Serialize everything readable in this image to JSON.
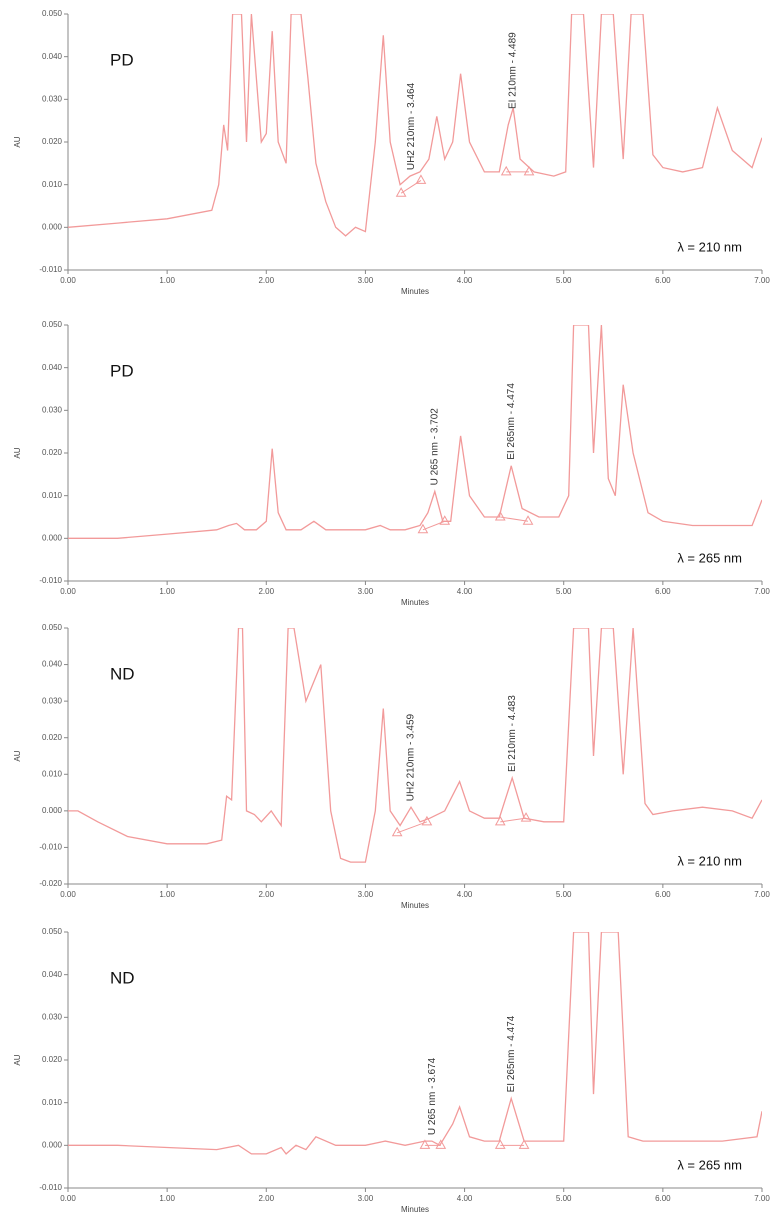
{
  "chart_data": [
    {
      "type": "line",
      "sample_label": "PD",
      "wavelength_label": "λ = 210 nm",
      "ylabel": "AU",
      "xlabel": "Minutes",
      "color": "#f29a9a",
      "x": [
        0,
        0.5,
        1.0,
        1.45,
        1.52,
        1.57,
        1.61,
        1.66,
        1.75,
        1.8,
        1.85,
        1.95,
        2.0,
        2.06,
        2.12,
        2.2,
        2.25,
        2.35,
        2.42,
        2.5,
        2.6,
        2.7,
        2.8,
        2.9,
        3.0,
        3.1,
        3.18,
        3.25,
        3.35,
        3.45,
        3.55,
        3.64,
        3.72,
        3.8,
        3.88,
        3.96,
        4.05,
        4.2,
        4.35,
        4.44,
        4.49,
        4.56,
        4.7,
        4.9,
        5.02,
        5.08,
        5.2,
        5.3,
        5.38,
        5.5,
        5.6,
        5.68,
        5.8,
        5.9,
        6.0,
        6.2,
        6.4,
        6.55,
        6.7,
        6.9,
        7.0
      ],
      "values": [
        0,
        0.001,
        0.002,
        0.004,
        0.01,
        0.024,
        0.018,
        0.05,
        0.05,
        0.02,
        0.05,
        0.02,
        0.022,
        0.046,
        0.02,
        0.015,
        0.05,
        0.05,
        0.035,
        0.015,
        0.006,
        0.0,
        -0.002,
        0.0,
        -0.001,
        0.02,
        0.045,
        0.02,
        0.01,
        0.012,
        0.013,
        0.016,
        0.026,
        0.016,
        0.02,
        0.036,
        0.02,
        0.013,
        0.013,
        0.024,
        0.028,
        0.016,
        0.013,
        0.012,
        0.013,
        0.05,
        0.05,
        0.014,
        0.05,
        0.05,
        0.016,
        0.05,
        0.05,
        0.017,
        0.014,
        0.013,
        0.014,
        0.028,
        0.018,
        0.014,
        0.021
      ],
      "markers": {
        "x": [
          3.36,
          3.56,
          4.42,
          4.65
        ],
        "y": [
          0.008,
          0.011,
          0.013,
          0.013
        ]
      },
      "peak_labels": [
        {
          "text": "UH2 210nm - 3.464",
          "x": 3.464
        },
        {
          "text": "EI 210nm - 4.489",
          "x": 4.489
        }
      ],
      "xlim": [
        0,
        7
      ],
      "ylim": [
        -0.01,
        0.05
      ],
      "xticks": [
        {
          "value": 0,
          "label": "0.00"
        },
        {
          "value": 1,
          "label": "1.00"
        },
        {
          "value": 2,
          "label": "2.00"
        },
        {
          "value": 3,
          "label": "3.00"
        },
        {
          "value": 4,
          "label": "4.00"
        },
        {
          "value": 5,
          "label": "5.00"
        },
        {
          "value": 6,
          "label": "6.00"
        },
        {
          "value": 7,
          "label": "7.00"
        }
      ],
      "yticks": [
        {
          "value": -0.01,
          "label": "-0.010"
        },
        {
          "value": 0,
          "label": "0.000"
        },
        {
          "value": 0.01,
          "label": "0.010"
        },
        {
          "value": 0.02,
          "label": "0.020"
        },
        {
          "value": 0.03,
          "label": "0.030"
        },
        {
          "value": 0.04,
          "label": "0.040"
        },
        {
          "value": 0.05,
          "label": "0.050"
        }
      ]
    },
    {
      "type": "line",
      "sample_label": "PD",
      "wavelength_label": "λ = 265 nm",
      "ylabel": "AU",
      "xlabel": "Minutes",
      "color": "#f29a9a",
      "x": [
        0,
        0.5,
        1.0,
        1.5,
        1.62,
        1.7,
        1.78,
        1.9,
        2.0,
        2.06,
        2.12,
        2.2,
        2.35,
        2.48,
        2.6,
        2.8,
        3.0,
        3.15,
        3.25,
        3.4,
        3.55,
        3.63,
        3.7,
        3.78,
        3.86,
        3.96,
        4.05,
        4.2,
        4.35,
        4.47,
        4.58,
        4.75,
        4.95,
        5.05,
        5.1,
        5.25,
        5.3,
        5.38,
        5.45,
        5.52,
        5.6,
        5.7,
        5.85,
        6.0,
        6.3,
        6.6,
        6.9,
        7.0
      ],
      "values": [
        0,
        0,
        0.001,
        0.002,
        0.003,
        0.0035,
        0.002,
        0.002,
        0.004,
        0.021,
        0.006,
        0.002,
        0.002,
        0.004,
        0.002,
        0.002,
        0.002,
        0.003,
        0.002,
        0.002,
        0.003,
        0.006,
        0.011,
        0.004,
        0.004,
        0.024,
        0.01,
        0.005,
        0.005,
        0.017,
        0.007,
        0.005,
        0.005,
        0.01,
        0.05,
        0.05,
        0.02,
        0.05,
        0.014,
        0.01,
        0.036,
        0.02,
        0.006,
        0.004,
        0.003,
        0.003,
        0.003,
        0.009
      ],
      "markers": {
        "x": [
          3.58,
          3.8,
          4.36,
          4.64
        ],
        "y": [
          0.002,
          0.004,
          0.005,
          0.004
        ]
      },
      "peak_labels": [
        {
          "text": "U 265 nm - 3.702",
          "x": 3.702
        },
        {
          "text": "EI 265nm - 4.474",
          "x": 4.474
        }
      ],
      "xlim": [
        0,
        7
      ],
      "ylim": [
        -0.01,
        0.05
      ],
      "xticks": [
        {
          "value": 0,
          "label": "0.00"
        },
        {
          "value": 1,
          "label": "1.00"
        },
        {
          "value": 2,
          "label": "2.00"
        },
        {
          "value": 3,
          "label": "3.00"
        },
        {
          "value": 4,
          "label": "4.00"
        },
        {
          "value": 5,
          "label": "5.00"
        },
        {
          "value": 6,
          "label": "6.00"
        },
        {
          "value": 7,
          "label": "7.00"
        }
      ],
      "yticks": [
        {
          "value": -0.01,
          "label": "-0.010"
        },
        {
          "value": 0,
          "label": "0.000"
        },
        {
          "value": 0.01,
          "label": "0.010"
        },
        {
          "value": 0.02,
          "label": "0.020"
        },
        {
          "value": 0.03,
          "label": "0.030"
        },
        {
          "value": 0.04,
          "label": "0.040"
        },
        {
          "value": 0.05,
          "label": "0.050"
        }
      ]
    },
    {
      "type": "line",
      "sample_label": "ND",
      "wavelength_label": "λ = 210 nm",
      "ylabel": "AU",
      "xlabel": "Minutes",
      "color": "#f29a9a",
      "x": [
        0,
        0.1,
        0.3,
        0.6,
        1.0,
        1.4,
        1.55,
        1.6,
        1.65,
        1.72,
        1.76,
        1.8,
        1.88,
        1.95,
        2.05,
        2.15,
        2.22,
        2.28,
        2.4,
        2.55,
        2.65,
        2.75,
        2.85,
        3.0,
        3.1,
        3.18,
        3.25,
        3.35,
        3.46,
        3.55,
        3.65,
        3.8,
        3.95,
        4.05,
        4.2,
        4.35,
        4.48,
        4.6,
        4.8,
        5.0,
        5.1,
        5.25,
        5.3,
        5.38,
        5.5,
        5.6,
        5.7,
        5.82,
        5.9,
        6.1,
        6.4,
        6.7,
        6.9,
        7.0
      ],
      "values": [
        0,
        0,
        -0.003,
        -0.007,
        -0.009,
        -0.009,
        -0.008,
        0.004,
        0.003,
        0.05,
        0.05,
        0.0,
        -0.001,
        -0.003,
        0.0,
        -0.004,
        0.05,
        0.05,
        0.03,
        0.04,
        0.0,
        -0.013,
        -0.014,
        -0.014,
        0.0,
        0.028,
        0.0,
        -0.004,
        0.001,
        -0.003,
        -0.002,
        0.0,
        0.008,
        0.0,
        -0.002,
        -0.002,
        0.009,
        -0.002,
        -0.003,
        -0.003,
        0.05,
        0.05,
        0.015,
        0.05,
        0.05,
        0.01,
        0.05,
        0.002,
        -0.001,
        0.0,
        0.001,
        0.0,
        -0.002,
        0.003
      ],
      "markers": {
        "x": [
          3.32,
          3.62,
          4.36,
          4.62
        ],
        "y": [
          -0.006,
          -0.003,
          -0.003,
          -0.002
        ]
      },
      "peak_labels": [
        {
          "text": "UH2 210nm - 3.459",
          "x": 3.459
        },
        {
          "text": "EI 210nm - 4.483",
          "x": 4.483
        }
      ],
      "xlim": [
        0,
        7
      ],
      "ylim": [
        -0.02,
        0.05
      ],
      "xticks": [
        {
          "value": 0,
          "label": "0.00"
        },
        {
          "value": 1,
          "label": "1.00"
        },
        {
          "value": 2,
          "label": "2.00"
        },
        {
          "value": 3,
          "label": "3.00"
        },
        {
          "value": 4,
          "label": "4.00"
        },
        {
          "value": 5,
          "label": "5.00"
        },
        {
          "value": 6,
          "label": "6.00"
        },
        {
          "value": 7,
          "label": "7.00"
        }
      ],
      "yticks": [
        {
          "value": -0.02,
          "label": "-0.020"
        },
        {
          "value": -0.01,
          "label": "-0.010"
        },
        {
          "value": 0,
          "label": "0.000"
        },
        {
          "value": 0.01,
          "label": "0.010"
        },
        {
          "value": 0.02,
          "label": "0.020"
        },
        {
          "value": 0.03,
          "label": "0.030"
        },
        {
          "value": 0.04,
          "label": "0.040"
        },
        {
          "value": 0.05,
          "label": "0.050"
        }
      ]
    },
    {
      "type": "line",
      "sample_label": "ND",
      "wavelength_label": "λ = 265 nm",
      "ylabel": "AU",
      "xlabel": "Minutes",
      "color": "#f29a9a",
      "x": [
        0,
        0.5,
        1.0,
        1.5,
        1.72,
        1.85,
        2.0,
        2.15,
        2.2,
        2.3,
        2.4,
        2.5,
        2.7,
        3.0,
        3.2,
        3.4,
        3.6,
        3.67,
        3.75,
        3.88,
        3.95,
        4.05,
        4.2,
        4.35,
        4.47,
        4.6,
        4.8,
        5.0,
        5.1,
        5.25,
        5.3,
        5.38,
        5.45,
        5.55,
        5.65,
        5.8,
        6.2,
        6.6,
        6.95,
        7.0
      ],
      "values": [
        0,
        0,
        -0.0005,
        -0.001,
        0,
        -0.002,
        -0.002,
        -0.0005,
        -0.002,
        0.0,
        -0.001,
        0.002,
        0.0,
        0.0,
        0.001,
        0.0,
        0.001,
        0.001,
        0.0,
        0.005,
        0.009,
        0.002,
        0.001,
        0.001,
        0.011,
        0.001,
        0.001,
        0.001,
        0.05,
        0.05,
        0.012,
        0.05,
        0.05,
        0.05,
        0.002,
        0.001,
        0.001,
        0.001,
        0.002,
        0.008
      ],
      "markers": {
        "x": [
          3.6,
          3.76,
          4.36,
          4.6
        ],
        "y": [
          0.0,
          0.0,
          0.0,
          0.0
        ]
      },
      "peak_labels": [
        {
          "text": "U 265 nm - 3.674",
          "x": 3.674
        },
        {
          "text": "EI 265nm - 4.474",
          "x": 4.474
        }
      ],
      "xlim": [
        0,
        7
      ],
      "ylim": [
        -0.01,
        0.05
      ],
      "xticks": [
        {
          "value": 0,
          "label": "0.00"
        },
        {
          "value": 1,
          "label": "1.00"
        },
        {
          "value": 2,
          "label": "2.00"
        },
        {
          "value": 3,
          "label": "3.00"
        },
        {
          "value": 4,
          "label": "4.00"
        },
        {
          "value": 5,
          "label": "5.00"
        },
        {
          "value": 6,
          "label": "6.00"
        },
        {
          "value": 7,
          "label": "7.00"
        }
      ],
      "yticks": [
        {
          "value": -0.01,
          "label": "-0.010"
        },
        {
          "value": 0,
          "label": "0.000"
        },
        {
          "value": 0.01,
          "label": "0.010"
        },
        {
          "value": 0.02,
          "label": "0.020"
        },
        {
          "value": 0.03,
          "label": "0.030"
        },
        {
          "value": 0.04,
          "label": "0.040"
        },
        {
          "value": 0.05,
          "label": "0.050"
        }
      ]
    }
  ]
}
